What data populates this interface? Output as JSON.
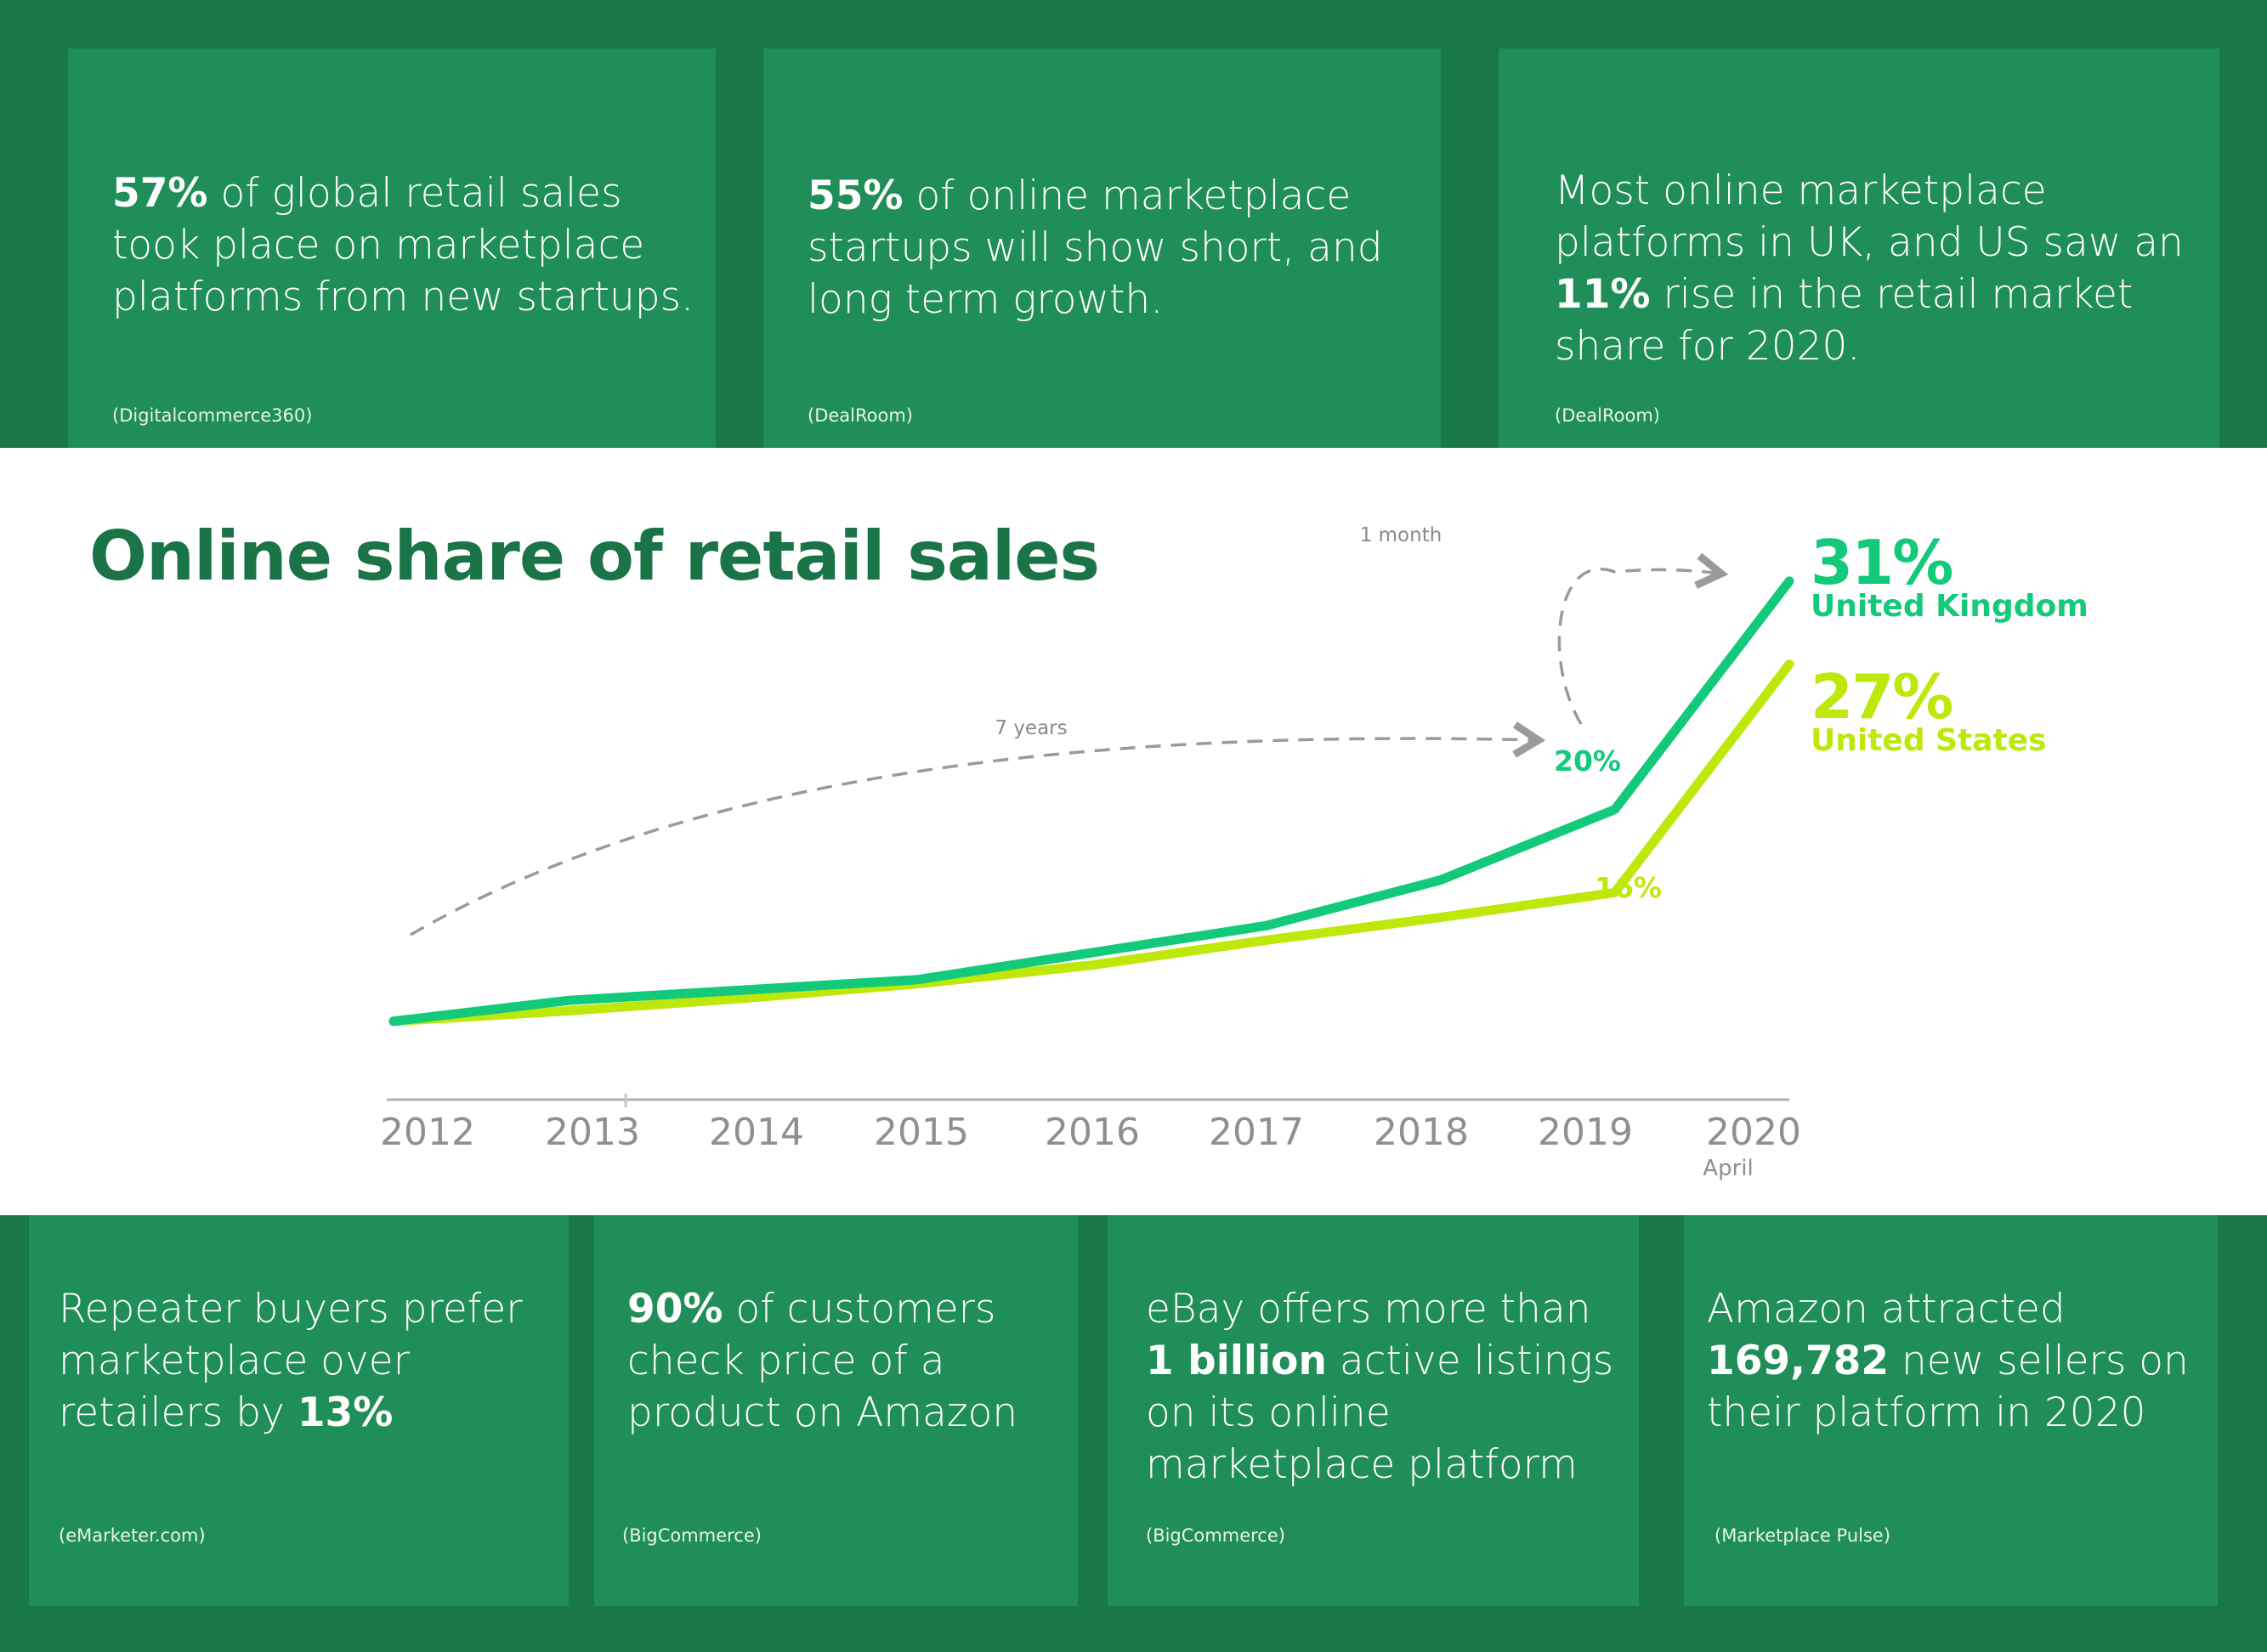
{
  "colors": {
    "background": "#19774a",
    "card": "#1f8e58",
    "uk": "#13c97a",
    "us": "#bde80a",
    "title": "#1a7448",
    "axis": "#8f8f8f"
  },
  "top_cards": [
    {
      "highlight": "57%",
      "text": " of global retail sales took place on marketplace platforms from new startups.",
      "source": "(Digitalcommerce360)"
    },
    {
      "highlight": "55%",
      "text": " of online marketplace startups will show short, and long term growth.",
      "source": "(DealRoom)"
    },
    {
      "before": "Most online marketplace platforms in UK, and US saw an ",
      "highlight": "11%",
      "after": " rise in the retail market share for 2020.",
      "source": "(DealRoom)"
    }
  ],
  "bottom_cards": [
    {
      "before": "Repeater buyers prefer marketplace over retailers by ",
      "highlight": "13%",
      "source": "(eMarketer.com)"
    },
    {
      "highlight": "90%",
      "text": " of customers check price of a product on Amazon",
      "source": "(BigCommerce)"
    },
    {
      "before": "eBay offers more than ",
      "highlight": "1 billion",
      "after": " active listings on its online marketplace platform",
      "source": "(BigCommerce)"
    },
    {
      "before": "Amazon attracted ",
      "highlight": "169,782",
      "after": " new sellers on their platform in 2020",
      "source": "(Marketplace Pulse)"
    }
  ],
  "chart_data": {
    "type": "line",
    "title": "Online share of retail sales",
    "x": [
      "2012",
      "2013",
      "2014",
      "2015",
      "2016",
      "2017",
      "2018",
      "2019",
      "2020"
    ],
    "x_sublabel": "April",
    "xlabel": "",
    "ylabel": "",
    "ylim": [
      5,
      33
    ],
    "grid": false,
    "series": [
      {
        "name": "United Kingdom",
        "values": [
          9.8,
          10.8,
          11.3,
          11.8,
          13.1,
          14.4,
          16.6,
          20,
          31
        ],
        "end_label": "31%",
        "point_label": "20%"
      },
      {
        "name": "United States",
        "values": [
          9.8,
          10.3,
          10.9,
          11.6,
          12.5,
          13.7,
          14.8,
          16,
          27
        ],
        "end_label": "27%",
        "point_label": "16%"
      }
    ],
    "annotations": [
      {
        "text": "7 years",
        "from": "2012",
        "to": "2019"
      },
      {
        "text": "1 month",
        "from": "2019",
        "to": "2020"
      }
    ]
  }
}
